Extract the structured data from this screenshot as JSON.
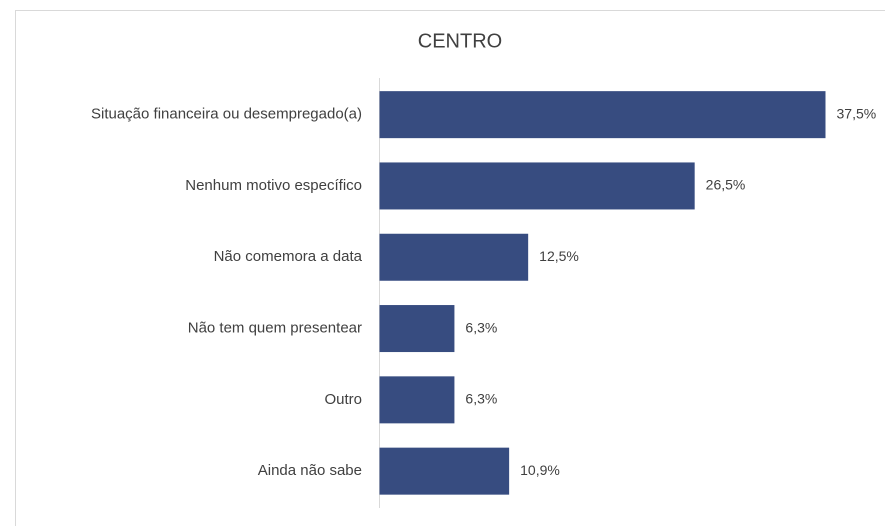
{
  "chart_data": {
    "type": "bar",
    "orientation": "horizontal",
    "title": "CENTRO",
    "categories": [
      "Situação financeira ou desempregado(a)",
      "Nenhum motivo específico",
      "Não comemora a data",
      "Não tem quem presentear",
      "Outro",
      "Ainda não sabe"
    ],
    "values": [
      37.5,
      26.5,
      12.5,
      6.3,
      6.3,
      10.9
    ],
    "value_labels": [
      "37,5%",
      "26,5%",
      "12,5%",
      "6,3%",
      "6,3%",
      "10,9%"
    ],
    "color": "#374c80"
  }
}
